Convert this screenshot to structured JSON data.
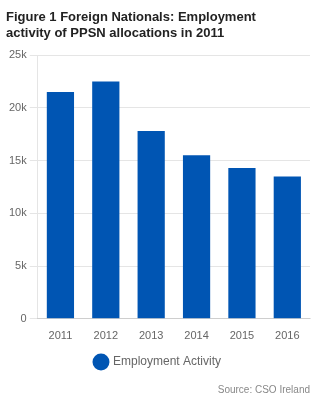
{
  "chart_data": {
    "type": "bar",
    "title": "Figure 1 Foreign Nationals: Employment\nactivity of PPSN allocations in 2011",
    "categories": [
      "2011",
      "2012",
      "2013",
      "2014",
      "2015",
      "2016"
    ],
    "series": [
      {
        "name": "Employment Activity",
        "color": "#0055b3",
        "values": [
          21500,
          22500,
          17800,
          15500,
          14300,
          13500
        ]
      }
    ],
    "ylim": [
      0,
      25000
    ],
    "yticks": [
      0,
      {
        "value": 5000,
        "label": "5k"
      },
      {
        "value": 10000,
        "label": "10k"
      },
      {
        "value": 15000,
        "label": "15k"
      },
      {
        "value": 20000,
        "label": "20k"
      },
      {
        "value": 25000,
        "label": "25k"
      }
    ],
    "grid": true,
    "legend": "bottom",
    "annotations": [
      "Source: CSO Ireland"
    ]
  }
}
